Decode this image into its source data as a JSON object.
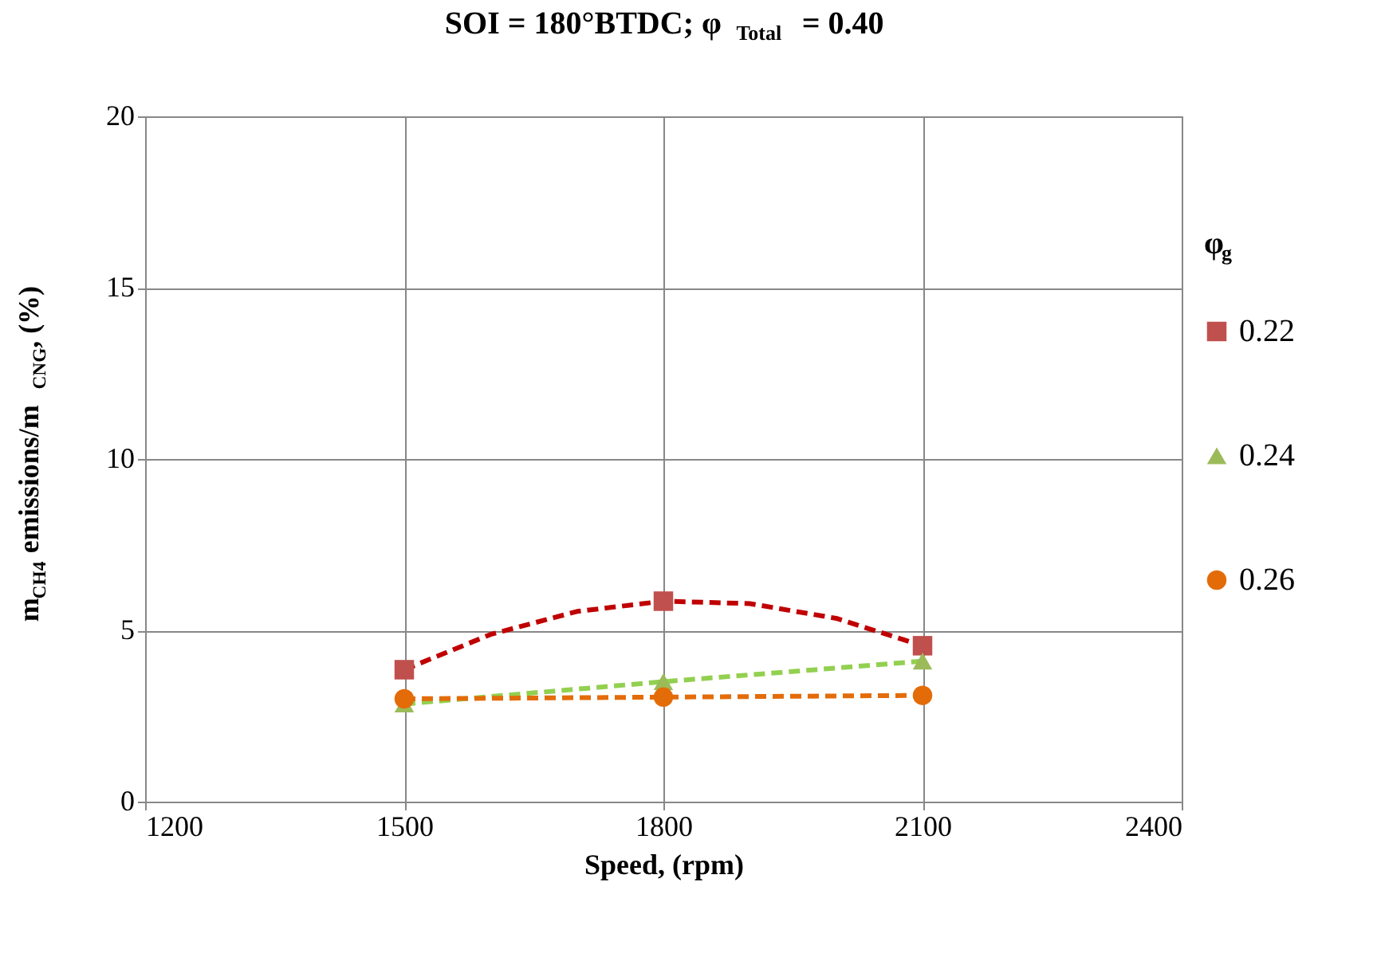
{
  "chart_data": {
    "type": "scatter",
    "title": "SOI = 180°BTDC; φ$_{Total}$ = 0.40",
    "xlabel": "Speed, (rpm)",
    "ylabel": "m$_{CH4}$ emissions/m$_{CNG}$,  (%)",
    "legend_title": "φ$_{g}$",
    "x": [
      1500,
      1800,
      2100
    ],
    "series": [
      {
        "name": "0.22",
        "color": "#c0504d",
        "marker": "square",
        "values": [
          3.85,
          5.85,
          4.55
        ]
      },
      {
        "name": "0.24",
        "color": "#9bbb59",
        "marker": "triangle",
        "values": [
          2.85,
          3.5,
          4.1
        ]
      },
      {
        "name": "0.26",
        "color": "#e36c09",
        "marker": "circle",
        "values": [
          3.0,
          3.05,
          3.1
        ]
      },
      {
        "type": "line",
        "color": "#c00000",
        "line_style": "dashed",
        "x": [
          1500,
          1600,
          1700,
          1800,
          1900,
          2000,
          2100
        ],
        "values": [
          3.85,
          4.88,
          5.55,
          5.85,
          5.78,
          5.35,
          4.55
        ]
      },
      {
        "type": "line",
        "color": "#92d050",
        "line_style": "dashed",
        "x": [
          1500,
          1800,
          2100
        ],
        "values": [
          2.85,
          3.5,
          4.1
        ]
      },
      {
        "type": "line",
        "color": "#e36c09",
        "line_style": "dashed",
        "x": [
          1500,
          1800,
          2100
        ],
        "values": [
          3.0,
          3.05,
          3.1
        ]
      }
    ],
    "xlim": [
      1200,
      2400
    ],
    "xticks": [
      1200,
      1500,
      1800,
      2100,
      2400
    ],
    "ylim": [
      0,
      20
    ],
    "yticks": [
      0,
      5,
      10,
      15,
      20
    ],
    "grid": true,
    "legend": "right"
  }
}
